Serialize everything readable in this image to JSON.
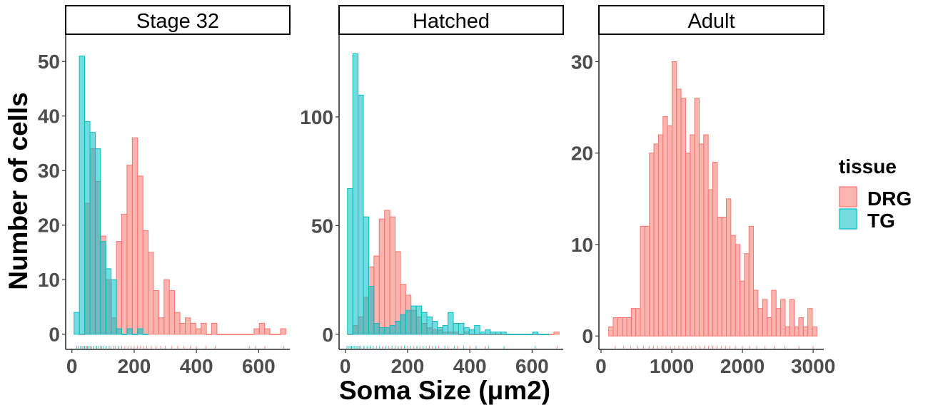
{
  "chart_data": {
    "type": "histogram",
    "xlabel": "Soma Size (μm2)",
    "ylabel": "Number of cells",
    "legend": {
      "title": "tissue",
      "placement": "right",
      "entries": [
        {
          "name": "DRG",
          "fill": "#f8766d",
          "opacity": 0.55
        },
        {
          "name": "TG",
          "fill": "#00bfc4",
          "opacity": 0.55
        }
      ]
    },
    "rug": true,
    "panels": [
      {
        "strip": "Stage 32",
        "xlim": [
          -20,
          700
        ],
        "ylim": [
          -2,
          55
        ],
        "xticks": [
          0,
          200,
          400,
          600
        ],
        "yticks": [
          0,
          10,
          20,
          30,
          40,
          50
        ],
        "binwidth": 17,
        "series": [
          {
            "name": "DRG",
            "bin_starts": [
              24,
              41,
              58,
              75,
              92,
              109,
              126,
              143,
              160,
              177,
              194,
              211,
              228,
              245,
              262,
              279,
              296,
              313,
              330,
              347,
              364,
              381,
              398,
              415,
              432,
              449,
              466,
              483,
              500,
              517,
              534,
              551,
              568,
              585,
              602,
              619,
              636,
              653,
              670
            ],
            "counts": [
              0,
              24,
              34,
              28,
              18,
              10,
              3,
              17,
              22,
              31,
              36,
              29,
              19,
              15,
              8,
              3,
              10,
              8,
              4,
              2,
              3,
              2,
              1,
              2,
              0,
              2,
              0,
              0,
              0,
              0,
              0,
              0,
              0,
              1,
              2,
              1,
              0,
              0,
              1
            ]
          },
          {
            "name": "TG",
            "bin_starts": [
              7,
              24,
              41,
              58,
              75,
              92,
              109,
              126,
              143,
              160,
              177,
              194,
              211,
              228
            ],
            "counts": [
              4,
              51,
              39,
              37,
              34,
              17,
              12,
              10,
              1,
              0,
              1,
              0,
              1,
              0
            ]
          }
        ],
        "rug_values": {
          "DRG": [
            30,
            42,
            50,
            60,
            70,
            80,
            95,
            110,
            125,
            140,
            150,
            160,
            170,
            180,
            190,
            200,
            210,
            220,
            230,
            240,
            255,
            270,
            285,
            300,
            320,
            340,
            360,
            380,
            400,
            430,
            460,
            570,
            590,
            620,
            680
          ],
          "TG": [
            15,
            20,
            28,
            35,
            40,
            48,
            55,
            62,
            70,
            78,
            85,
            92,
            100,
            110,
            120,
            135,
            150
          ]
        }
      },
      {
        "strip": "Hatched",
        "xlim": [
          -20,
          700
        ],
        "ylim": [
          -5,
          138
        ],
        "xticks": [
          0,
          200,
          400,
          600
        ],
        "yticks": [
          0,
          50,
          100
        ],
        "binwidth": 17,
        "series": [
          {
            "name": "DRG",
            "bin_starts": [
              7,
              24,
              41,
              58,
              75,
              92,
              109,
              126,
              143,
              160,
              177,
              194,
              211,
              228,
              245,
              262,
              279,
              296,
              313,
              330,
              347,
              364,
              381,
              398,
              415,
              432,
              449,
              466,
              483,
              500,
              517,
              534,
              551,
              568,
              585,
              602,
              619,
              636,
              653,
              670
            ],
            "counts": [
              0,
              4,
              8,
              17,
              31,
              36,
              53,
              57,
              54,
              38,
              23,
              18,
              11,
              8,
              5,
              3,
              2,
              2,
              1,
              1,
              1,
              0,
              1,
              0,
              0,
              0,
              0,
              0,
              0,
              0,
              0,
              0,
              0,
              0,
              0,
              0,
              0,
              0,
              0,
              1
            ]
          },
          {
            "name": "TG",
            "bin_starts": [
              7,
              24,
              41,
              58,
              75,
              92,
              109,
              126,
              143,
              160,
              177,
              194,
              211,
              228,
              245,
              262,
              279,
              296,
              313,
              330,
              347,
              364,
              381,
              398,
              415,
              432,
              449,
              466,
              483,
              500,
              517,
              534,
              551,
              568,
              585,
              602,
              619,
              636
            ],
            "counts": [
              67,
              129,
              110,
              54,
              22,
              5,
              3,
              3,
              4,
              6,
              9,
              11,
              13,
              13,
              10,
              8,
              6,
              3,
              4,
              10,
              5,
              5,
              3,
              2,
              4,
              1,
              2,
              1,
              1,
              1,
              0,
              0,
              0,
              0,
              0,
              1,
              0,
              0
            ]
          }
        ],
        "rug_values": {
          "DRG": [
            20,
            40,
            60,
            80,
            100,
            120,
            140,
            160,
            180,
            200,
            220,
            240,
            260,
            280,
            300,
            330,
            360,
            400,
            450,
            680
          ],
          "TG": [
            5,
            10,
            15,
            20,
            25,
            30,
            35,
            40,
            45,
            50,
            60,
            70,
            80,
            90,
            110,
            130,
            150,
            170,
            190,
            210,
            230,
            250,
            270,
            290,
            320,
            350,
            380,
            420,
            460,
            510,
            610
          ]
        }
      },
      {
        "strip": "Adult",
        "xlim": [
          -30,
          3150
        ],
        "ylim": [
          -1,
          33
        ],
        "xticks": [
          0,
          1000,
          2000,
          3000
        ],
        "yticks": [
          0,
          10,
          20,
          30
        ],
        "binwidth": 64,
        "series": [
          {
            "name": "DRG",
            "bin_starts": [
              108,
              172,
              236,
              300,
              364,
              428,
              492,
              556,
              620,
              684,
              748,
              812,
              876,
              940,
              1004,
              1068,
              1132,
              1196,
              1260,
              1324,
              1388,
              1452,
              1516,
              1580,
              1644,
              1708,
              1772,
              1836,
              1900,
              1964,
              2028,
              2092,
              2156,
              2220,
              2284,
              2348,
              2412,
              2476,
              2540,
              2604,
              2668,
              2732,
              2796,
              2860,
              2924,
              2988
            ],
            "counts": [
              1,
              2,
              2,
              2,
              2,
              3,
              3,
              12,
              12,
              20,
              21,
              22,
              24,
              23,
              30,
              27,
              26,
              20,
              22,
              26,
              21,
              22,
              16,
              19,
              13,
              13,
              15,
              11,
              10,
              6,
              9,
              12,
              5,
              3,
              4,
              2,
              5,
              3,
              4,
              1,
              4,
              1,
              2,
              1,
              3,
              1
            ]
          }
        ],
        "rug_values": {
          "DRG": [
            200,
            320,
            420,
            520,
            600,
            680,
            740,
            800,
            860,
            920,
            980,
            1040,
            1100,
            1160,
            1220,
            1280,
            1340,
            1400,
            1460,
            1520,
            1580,
            1640,
            1700,
            1760,
            1820,
            1900,
            2000,
            2100,
            2200,
            2320,
            2450,
            2600,
            2800,
            3000
          ]
        }
      }
    ]
  }
}
